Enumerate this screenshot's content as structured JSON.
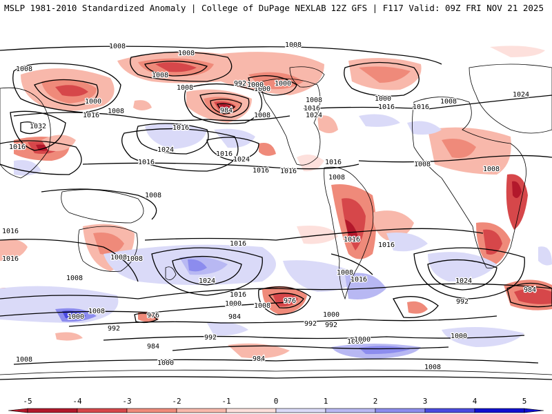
{
  "header": {
    "title": "MSLP 1981-2010 Standardized Anomaly | College of DuPage NEXLAB",
    "run_info": "12Z GFS | F117 Valid: 09Z FRI NOV 21 2025"
  },
  "colors": {
    "neg5": "#b2182b",
    "neg4": "#d6474a",
    "neg3": "#ef8a7a",
    "neg2": "#f8b8ab",
    "neg1": "#fde0dc",
    "pos1": "#dadaf8",
    "pos2": "#b8b8f3",
    "pos3": "#8c8cee",
    "pos4": "#4a4ae0",
    "pos5": "#1010d0",
    "contour": "#000000",
    "land": "#ffffff"
  },
  "isobars": [
    {
      "label": "1008"
    },
    {
      "label": "1008"
    },
    {
      "label": "1008"
    },
    {
      "label": "1008"
    },
    {
      "label": "1008"
    },
    {
      "label": "1000"
    },
    {
      "label": "1000"
    },
    {
      "label": "992"
    },
    {
      "label": "1000"
    },
    {
      "label": "1008"
    },
    {
      "label": "1000"
    },
    {
      "label": "1008"
    },
    {
      "label": "1016"
    },
    {
      "label": "984"
    },
    {
      "label": "1016"
    },
    {
      "label": "1008"
    },
    {
      "label": "1016"
    },
    {
      "label": "1024"
    },
    {
      "label": "1008"
    },
    {
      "label": "1000"
    },
    {
      "label": "1008"
    },
    {
      "label": "1016"
    },
    {
      "label": "1024"
    },
    {
      "label": "1032"
    },
    {
      "label": "1016"
    },
    {
      "label": "1016"
    },
    {
      "label": "1024"
    },
    {
      "label": "1016"
    },
    {
      "label": "1024"
    },
    {
      "label": "1016"
    },
    {
      "label": "1016"
    },
    {
      "label": "1008"
    },
    {
      "label": "1016"
    },
    {
      "label": "1016"
    },
    {
      "label": "1008"
    },
    {
      "label": "1008"
    },
    {
      "label": "1008"
    },
    {
      "label": "1016"
    },
    {
      "label": "1016"
    },
    {
      "label": "1016"
    },
    {
      "label": "1008"
    },
    {
      "label": "1024"
    },
    {
      "label": "1016"
    },
    {
      "label": "1016"
    },
    {
      "label": "1008"
    },
    {
      "label": "1016"
    },
    {
      "label": "1016"
    },
    {
      "label": "1008"
    },
    {
      "label": "1008"
    },
    {
      "label": "1024"
    },
    {
      "label": "1000"
    },
    {
      "label": "992"
    },
    {
      "label": "984"
    },
    {
      "label": "1008"
    },
    {
      "label": "1000"
    },
    {
      "label": "992"
    },
    {
      "label": "976"
    },
    {
      "label": "1000"
    },
    {
      "label": "992"
    },
    {
      "label": "976"
    },
    {
      "label": "992"
    },
    {
      "label": "984"
    },
    {
      "label": "1008"
    },
    {
      "label": "1000"
    },
    {
      "label": "1000"
    },
    {
      "label": "984"
    },
    {
      "label": "992"
    },
    {
      "label": "1000"
    },
    {
      "label": "1000"
    },
    {
      "label": "1008"
    },
    {
      "label": "1008"
    },
    {
      "label": "984"
    }
  ],
  "colorbar": {
    "ticks": [
      "-5",
      "-4",
      "-3",
      "-2",
      "-1",
      "0",
      "1",
      "2",
      "3",
      "4",
      "5"
    ]
  }
}
